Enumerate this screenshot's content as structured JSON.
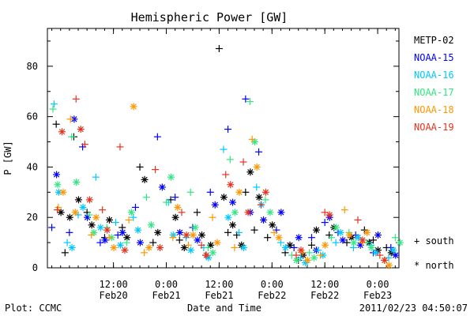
{
  "chart_data": {
    "type": "scatter",
    "title": "Hemispheric Power [GW]",
    "ylabel": "P [GW]",
    "xlabel": "Date and Time",
    "ylim": [
      0,
      95
    ],
    "yticks": [
      0,
      20,
      40,
      60,
      80
    ],
    "xlim": [
      "2011-02-19T21:00",
      "2011-02-23T04:50"
    ],
    "xticks": [
      {
        "time": "2011-02-20T12:00",
        "label_time": "12:00",
        "label_date": "Feb20"
      },
      {
        "time": "2011-02-21T00:00",
        "label_time": "0:00",
        "label_date": "Feb21"
      },
      {
        "time": "2011-02-21T12:00",
        "label_time": "12:00",
        "label_date": "Feb21"
      },
      {
        "time": "2011-02-22T00:00",
        "label_time": "0:00",
        "label_date": "Feb22"
      },
      {
        "time": "2011-02-22T12:00",
        "label_time": "12:00",
        "label_date": "Feb22"
      },
      {
        "time": "2011-02-23T00:00",
        "label_time": "0:00",
        "label_date": "Feb23"
      }
    ],
    "grid": false,
    "legend_placement": "right",
    "marker_key": [
      {
        "symbol": "+",
        "label": "south"
      },
      {
        "symbol": "*",
        "label": "north"
      }
    ],
    "series": [
      {
        "name": "METP-02",
        "color": "#000000",
        "points": [
          {
            "t": "2011-02-19T23:00",
            "south": 57,
            "north": 22
          },
          {
            "t": "2011-02-20T01:00",
            "south": 6,
            "north": 20
          },
          {
            "t": "2011-02-20T03:00",
            "south": 52,
            "north": 27
          },
          {
            "t": "2011-02-20T06:00",
            "south": 22,
            "north": 17
          },
          {
            "t": "2011-02-20T10:00",
            "south": 12,
            "north": 19
          },
          {
            "t": "2011-02-20T14:00",
            "south": 16,
            "north": 12
          },
          {
            "t": "2011-02-20T18:00",
            "south": 40,
            "north": 35
          },
          {
            "t": "2011-02-20T21:00",
            "south": 10,
            "north": 14
          },
          {
            "t": "2011-02-21T01:00",
            "south": 27,
            "north": 20
          },
          {
            "t": "2011-02-21T03:00",
            "south": 11,
            "north": 8
          },
          {
            "t": "2011-02-21T07:00",
            "south": 22,
            "north": 13
          },
          {
            "t": "2011-02-21T09:00",
            "south": 5,
            "north": 9
          },
          {
            "t": "2011-02-21T12:00",
            "south": 87,
            "north": 28
          },
          {
            "t": "2011-02-21T14:00",
            "south": 14,
            "north": 17
          },
          {
            "t": "2011-02-21T16:00",
            "south": 13,
            "north": 9
          },
          {
            "t": "2011-02-21T18:00",
            "south": 30,
            "north": 38
          },
          {
            "t": "2011-02-21T20:00",
            "south": 15,
            "north": 28
          },
          {
            "t": "2011-02-21T23:00",
            "south": 12,
            "north": 17
          },
          {
            "t": "2011-02-22T03:00",
            "south": 6,
            "north": 9
          },
          {
            "t": "2011-02-22T06:00",
            "south": 3,
            "north": 5
          },
          {
            "t": "2011-02-22T09:00",
            "south": 9,
            "north": 15
          },
          {
            "t": "2011-02-22T13:00",
            "south": 13,
            "north": 16
          },
          {
            "t": "2011-02-22T17:00",
            "south": 10,
            "north": 12
          },
          {
            "t": "2011-02-22T21:00",
            "south": 15,
            "north": 10
          },
          {
            "t": "2011-02-22T23:00",
            "south": 11,
            "north": 7
          },
          {
            "t": "2011-02-23T02:00",
            "south": 8,
            "north": 6
          }
        ]
      },
      {
        "name": "NOAA-15",
        "color": "#0000ff",
        "points": [
          {
            "t": "2011-02-19T22:00",
            "south": 16,
            "north": 37
          },
          {
            "t": "2011-02-20T02:00",
            "south": 14,
            "north": 59
          },
          {
            "t": "2011-02-20T05:00",
            "south": 48,
            "north": 20
          },
          {
            "t": "2011-02-20T09:00",
            "south": 10,
            "north": 11
          },
          {
            "t": "2011-02-20T13:00",
            "south": 13,
            "north": 14
          },
          {
            "t": "2011-02-20T17:00",
            "south": 24,
            "north": 10
          },
          {
            "t": "2011-02-20T22:00",
            "south": 52,
            "north": 32
          },
          {
            "t": "2011-02-21T02:00",
            "south": 28,
            "north": 14
          },
          {
            "t": "2011-02-21T06:00",
            "south": 16,
            "north": 11
          },
          {
            "t": "2011-02-21T10:00",
            "south": 30,
            "north": 25
          },
          {
            "t": "2011-02-21T14:00",
            "south": 55,
            "north": 26
          },
          {
            "t": "2011-02-21T18:00",
            "south": 67,
            "north": 22
          },
          {
            "t": "2011-02-21T21:00",
            "south": 46,
            "north": 19
          },
          {
            "t": "2011-02-22T01:00",
            "south": 15,
            "north": 22
          },
          {
            "t": "2011-02-22T05:00",
            "south": 8,
            "north": 12
          },
          {
            "t": "2011-02-22T09:00",
            "south": 12,
            "north": 7
          },
          {
            "t": "2011-02-22T12:00",
            "south": 18,
            "north": 20
          },
          {
            "t": "2011-02-22T15:00",
            "south": 14,
            "north": 11
          },
          {
            "t": "2011-02-22T19:00",
            "south": 13,
            "north": 9
          },
          {
            "t": "2011-02-22T23:00",
            "south": 6,
            "north": 13
          },
          {
            "t": "2011-02-23T03:00",
            "south": 8,
            "north": 5
          }
        ]
      },
      {
        "name": "NOAA-16",
        "color": "#00c8ff",
        "points": [
          {
            "t": "2011-02-19T22:30",
            "south": 65,
            "north": 30
          },
          {
            "t": "2011-02-20T01:30",
            "south": 10,
            "north": 8
          },
          {
            "t": "2011-02-20T04:00",
            "south": 21,
            "north": 24
          },
          {
            "t": "2011-02-20T08:00",
            "south": 36,
            "north": 16
          },
          {
            "t": "2011-02-20T12:30",
            "south": 18,
            "north": 9
          },
          {
            "t": "2011-02-20T16:30",
            "south": 20,
            "north": 15
          },
          {
            "t": "2011-02-21T00:30",
            "south": 26,
            "north": 13
          },
          {
            "t": "2011-02-21T04:30",
            "south": 12,
            "north": 7
          },
          {
            "t": "2011-02-21T08:30",
            "south": 8,
            "north": 4
          },
          {
            "t": "2011-02-21T13:00",
            "south": 47,
            "north": 20
          },
          {
            "t": "2011-02-21T16:30",
            "south": 14,
            "north": 8
          },
          {
            "t": "2011-02-21T20:30",
            "south": 32,
            "north": 25
          },
          {
            "t": "2011-02-22T02:00",
            "south": 10,
            "north": 8
          },
          {
            "t": "2011-02-22T06:30",
            "south": 4,
            "north": 2
          },
          {
            "t": "2011-02-22T10:30",
            "south": 7,
            "north": 5
          },
          {
            "t": "2011-02-22T14:30",
            "south": 10,
            "north": 14
          },
          {
            "t": "2011-02-22T18:30",
            "south": 8,
            "north": 12
          },
          {
            "t": "2011-02-22T22:30",
            "south": 9,
            "north": 6
          },
          {
            "t": "2011-02-23T02:30",
            "south": 4,
            "north": 7
          }
        ]
      },
      {
        "name": "NOAA-17",
        "color": "#32e682",
        "points": [
          {
            "t": "2011-02-19T22:15",
            "south": 63,
            "north": 33
          },
          {
            "t": "2011-02-20T02:30",
            "south": 52,
            "north": 34
          },
          {
            "t": "2011-02-20T06:30",
            "south": 21,
            "north": 14
          },
          {
            "t": "2011-02-20T10:30",
            "south": 16,
            "north": 12
          },
          {
            "t": "2011-02-20T15:00",
            "south": 10,
            "north": 22
          },
          {
            "t": "2011-02-20T19:30",
            "south": 28,
            "north": 17
          },
          {
            "t": "2011-02-21T00:00",
            "south": 26,
            "north": 36
          },
          {
            "t": "2011-02-21T05:30",
            "south": 30,
            "north": 16
          },
          {
            "t": "2011-02-21T09:30",
            "south": 8,
            "north": 6
          },
          {
            "t": "2011-02-21T14:30",
            "south": 43,
            "north": 22
          },
          {
            "t": "2011-02-21T19:00",
            "south": 66,
            "north": 50
          },
          {
            "t": "2011-02-21T22:30",
            "south": 27,
            "north": 22
          },
          {
            "t": "2011-02-22T04:30",
            "south": 5,
            "north": 3
          },
          {
            "t": "2011-02-22T08:30",
            "south": 6,
            "north": 4
          },
          {
            "t": "2011-02-22T13:30",
            "south": 12,
            "north": 16
          },
          {
            "t": "2011-02-22T17:30",
            "south": 14,
            "north": 10
          },
          {
            "t": "2011-02-22T21:30",
            "south": 10,
            "north": 8
          },
          {
            "t": "2011-02-23T04:00",
            "south": 12,
            "north": 10
          }
        ]
      },
      {
        "name": "NOAA-18",
        "color": "#ff9600",
        "points": [
          {
            "t": "2011-02-19T23:30",
            "south": 24,
            "north": 30
          },
          {
            "t": "2011-02-20T02:15",
            "south": 59,
            "north": 22
          },
          {
            "t": "2011-02-20T07:00",
            "south": 13,
            "north": 20
          },
          {
            "t": "2011-02-20T11:00",
            "south": 12,
            "north": 8
          },
          {
            "t": "2011-02-20T15:30",
            "south": 19,
            "north": 64
          },
          {
            "t": "2011-02-20T19:00",
            "south": 6,
            "north": 8
          },
          {
            "t": "2011-02-21T01:30",
            "south": 12,
            "north": 24
          },
          {
            "t": "2011-02-21T05:00",
            "south": 9,
            "north": 13
          },
          {
            "t": "2011-02-21T10:30",
            "south": 20,
            "north": 10
          },
          {
            "t": "2011-02-21T15:30",
            "south": 8,
            "north": 30
          },
          {
            "t": "2011-02-21T19:30",
            "south": 51,
            "north": 40
          },
          {
            "t": "2011-02-22T00:30",
            "south": 14,
            "north": 12
          },
          {
            "t": "2011-02-22T07:00",
            "south": 6,
            "north": 3
          },
          {
            "t": "2011-02-22T11:00",
            "south": 5,
            "north": 9
          },
          {
            "t": "2011-02-22T16:30",
            "south": 23,
            "north": 13
          },
          {
            "t": "2011-02-22T20:30",
            "south": 10,
            "north": 14
          },
          {
            "t": "2011-02-23T01:30",
            "south": 3,
            "north": 1
          }
        ]
      },
      {
        "name": "NOAA-19",
        "color": "#e6321e",
        "points": [
          {
            "t": "2011-02-19T23:15",
            "south": 23,
            "north": 54
          },
          {
            "t": "2011-02-20T03:30",
            "south": 67,
            "north": 55
          },
          {
            "t": "2011-02-20T05:30",
            "south": 49,
            "north": 27
          },
          {
            "t": "2011-02-20T09:30",
            "south": 23,
            "north": 15
          },
          {
            "t": "2011-02-20T13:30",
            "south": 48,
            "north": 7
          },
          {
            "t": "2011-02-20T21:30",
            "south": 39,
            "north": 8
          },
          {
            "t": "2011-02-21T03:30",
            "south": 22,
            "north": 13
          },
          {
            "t": "2011-02-21T08:00",
            "south": 9,
            "north": 5
          },
          {
            "t": "2011-02-21T13:30",
            "south": 37,
            "north": 33
          },
          {
            "t": "2011-02-21T17:30",
            "south": 42,
            "north": 22
          },
          {
            "t": "2011-02-21T21:30",
            "south": 25,
            "north": 30
          },
          {
            "t": "2011-02-22T05:30",
            "south": 5,
            "north": 7
          },
          {
            "t": "2011-02-22T12:00",
            "south": 22,
            "north": 21
          },
          {
            "t": "2011-02-22T19:30",
            "south": 19,
            "north": 11
          },
          {
            "t": "2011-02-23T00:30",
            "south": 5,
            "north": 3
          }
        ]
      }
    ]
  },
  "footer": {
    "left": "Plot: CCMC",
    "center": "Date and Time",
    "right": "2011/02/23 04:50:07"
  }
}
